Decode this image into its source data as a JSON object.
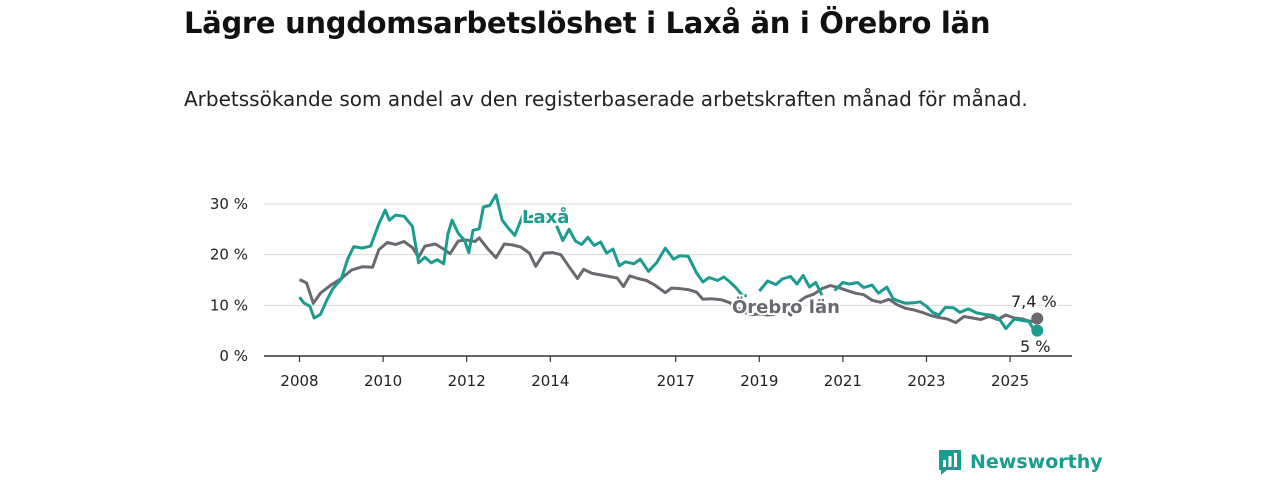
{
  "header": {
    "title": "Lägre ungdomsarbetslöshet i Laxå än i Örebro län",
    "subtitle": "Arbetssökande som andel av den registerbaserade arbetskraften månad för månad."
  },
  "brand": {
    "name": "Newsworthy",
    "icon": "newsworthy-logo-icon",
    "color": "#1a9c8f"
  },
  "chart_data": {
    "type": "line",
    "title": "Lägre ungdomsarbetslöshet i Laxå än i Örebro län",
    "subtitle": "Arbetssökande som andel av den registerbaserade arbetskraften månad för månad.",
    "xlabel": "",
    "ylabel": "",
    "ylim": [
      0,
      35
    ],
    "xlim": [
      2007.5,
      2026.3
    ],
    "grid": "horizontal",
    "y_ticks": [
      0,
      10,
      20,
      30
    ],
    "y_tick_labels": [
      "0 %",
      "10 %",
      "20 %",
      "30 %"
    ],
    "x_ticks": [
      2008,
      2010,
      2012,
      2014,
      2017,
      2019,
      2021,
      2023,
      2025
    ],
    "x_tick_labels": [
      "2008",
      "2010",
      "2012",
      "2014",
      "2017",
      "2019",
      "2021",
      "2023",
      "2025"
    ],
    "series": [
      {
        "name": "Örebro län",
        "color": "#6b6970",
        "end_label": "7,4 %",
        "points": [
          [
            2008.0,
            15.1
          ],
          [
            2008.17,
            14.4
          ],
          [
            2008.33,
            10.4
          ],
          [
            2008.5,
            12.4
          ],
          [
            2008.75,
            14.0
          ],
          [
            2009.0,
            15.3
          ],
          [
            2009.25,
            17.0
          ],
          [
            2009.5,
            17.6
          ],
          [
            2009.75,
            17.5
          ],
          [
            2009.9,
            21.0
          ],
          [
            2010.1,
            22.4
          ],
          [
            2010.3,
            22.0
          ],
          [
            2010.5,
            22.6
          ],
          [
            2010.7,
            21.4
          ],
          [
            2010.85,
            19.5
          ],
          [
            2011.0,
            21.7
          ],
          [
            2011.25,
            22.1
          ],
          [
            2011.45,
            21.1
          ],
          [
            2011.6,
            20.2
          ],
          [
            2011.8,
            22.7
          ],
          [
            2012.0,
            22.9
          ],
          [
            2012.2,
            22.6
          ],
          [
            2012.3,
            23.3
          ],
          [
            2012.5,
            21.2
          ],
          [
            2012.7,
            19.4
          ],
          [
            2012.9,
            22.1
          ],
          [
            2013.1,
            21.9
          ],
          [
            2013.3,
            21.5
          ],
          [
            2013.5,
            20.3
          ],
          [
            2013.65,
            17.7
          ],
          [
            2013.85,
            20.3
          ],
          [
            2014.05,
            20.4
          ],
          [
            2014.25,
            20.0
          ],
          [
            2014.45,
            17.6
          ],
          [
            2014.65,
            15.3
          ],
          [
            2014.8,
            17.1
          ],
          [
            2015.0,
            16.3
          ],
          [
            2015.2,
            16.0
          ],
          [
            2015.4,
            15.7
          ],
          [
            2015.6,
            15.4
          ],
          [
            2015.75,
            13.7
          ],
          [
            2015.9,
            15.8
          ],
          [
            2016.1,
            15.3
          ],
          [
            2016.3,
            14.9
          ],
          [
            2016.5,
            14.0
          ],
          [
            2016.75,
            12.5
          ],
          [
            2016.9,
            13.4
          ],
          [
            2017.1,
            13.3
          ],
          [
            2017.3,
            13.1
          ],
          [
            2017.5,
            12.6
          ],
          [
            2017.65,
            11.2
          ],
          [
            2017.85,
            11.3
          ],
          [
            2018.1,
            11.1
          ],
          [
            2018.3,
            10.5
          ],
          [
            2018.5,
            9.4
          ],
          [
            2018.7,
            8.4
          ],
          [
            2018.85,
            8.2
          ],
          [
            2019.0,
            8.3
          ],
          [
            2019.2,
            8.1
          ],
          [
            2019.4,
            8.3
          ],
          [
            2019.6,
            9.1
          ],
          [
            2019.75,
            8.1
          ],
          [
            2019.9,
            10.4
          ],
          [
            2020.1,
            11.6
          ],
          [
            2020.3,
            12.2
          ],
          [
            2020.5,
            13.3
          ],
          [
            2020.7,
            13.9
          ],
          [
            2020.9,
            13.5
          ],
          [
            2021.1,
            12.9
          ],
          [
            2021.3,
            12.4
          ],
          [
            2021.5,
            12.1
          ],
          [
            2021.7,
            11.0
          ],
          [
            2021.9,
            10.6
          ],
          [
            2022.1,
            11.2
          ],
          [
            2022.3,
            10.1
          ],
          [
            2022.5,
            9.4
          ],
          [
            2022.7,
            9.1
          ],
          [
            2022.9,
            8.6
          ],
          [
            2023.1,
            8.0
          ],
          [
            2023.3,
            7.6
          ],
          [
            2023.5,
            7.3
          ],
          [
            2023.7,
            6.6
          ],
          [
            2023.9,
            7.8
          ],
          [
            2024.1,
            7.5
          ],
          [
            2024.3,
            7.2
          ],
          [
            2024.5,
            7.8
          ],
          [
            2024.7,
            7.2
          ],
          [
            2024.9,
            8.1
          ],
          [
            2025.1,
            7.5
          ],
          [
            2025.3,
            7.3
          ],
          [
            2025.45,
            6.9
          ],
          [
            2025.55,
            6.8
          ],
          [
            2025.65,
            7.4
          ]
        ]
      },
      {
        "name": "Laxå",
        "color": "#1a9c8f",
        "end_label": "5 %",
        "segments": [
          [
            [
              2008.0,
              11.6
            ],
            [
              2008.1,
              10.5
            ],
            [
              2008.25,
              9.8
            ],
            [
              2008.35,
              7.5
            ],
            [
              2008.5,
              8.2
            ],
            [
              2008.65,
              11.0
            ],
            [
              2008.8,
              13.3
            ],
            [
              2009.0,
              15.2
            ],
            [
              2009.15,
              19.1
            ],
            [
              2009.3,
              21.6
            ],
            [
              2009.5,
              21.3
            ],
            [
              2009.7,
              21.7
            ],
            [
              2009.9,
              26.1
            ],
            [
              2010.05,
              28.8
            ],
            [
              2010.15,
              26.8
            ],
            [
              2010.3,
              27.8
            ],
            [
              2010.5,
              27.6
            ],
            [
              2010.7,
              25.6
            ],
            [
              2010.85,
              18.4
            ],
            [
              2011.0,
              19.5
            ],
            [
              2011.15,
              18.4
            ],
            [
              2011.3,
              19.0
            ],
            [
              2011.45,
              18.2
            ],
            [
              2011.55,
              24.1
            ],
            [
              2011.65,
              26.8
            ],
            [
              2011.8,
              24.2
            ],
            [
              2011.95,
              22.8
            ],
            [
              2012.05,
              20.4
            ],
            [
              2012.15,
              24.8
            ],
            [
              2012.3,
              25.1
            ],
            [
              2012.4,
              29.4
            ],
            [
              2012.55,
              29.7
            ],
            [
              2012.7,
              31.8
            ],
            [
              2012.85,
              26.8
            ],
            [
              2013.0,
              25.2
            ],
            [
              2013.15,
              23.8
            ],
            [
              2013.35,
              27.9
            ],
            [
              2013.5,
              27.4
            ],
            [
              2013.65,
              27.8
            ],
            [
              2013.8,
              26.1
            ],
            [
              2013.9,
              27.3
            ],
            [
              2014.0,
              27.7
            ]
          ],
          [
            [
              2014.15,
              25.7
            ],
            [
              2014.3,
              22.8
            ],
            [
              2014.45,
              25.0
            ],
            [
              2014.6,
              22.7
            ],
            [
              2014.75,
              22.0
            ],
            [
              2014.9,
              23.4
            ],
            [
              2015.05,
              21.8
            ],
            [
              2015.2,
              22.5
            ],
            [
              2015.35,
              20.3
            ],
            [
              2015.5,
              21.1
            ],
            [
              2015.65,
              17.8
            ],
            [
              2015.8,
              18.6
            ],
            [
              2016.0,
              18.2
            ],
            [
              2016.15,
              19.1
            ],
            [
              2016.35,
              16.7
            ],
            [
              2016.55,
              18.5
            ],
            [
              2016.75,
              21.3
            ],
            [
              2016.95,
              19.1
            ],
            [
              2017.1,
              19.8
            ],
            [
              2017.3,
              19.7
            ],
            [
              2017.5,
              16.4
            ],
            [
              2017.65,
              14.6
            ],
            [
              2017.8,
              15.5
            ],
            [
              2018.0,
              14.9
            ],
            [
              2018.15,
              15.6
            ],
            [
              2018.3,
              14.6
            ],
            [
              2018.45,
              13.4
            ],
            [
              2018.6,
              11.9
            ],
            [
              2018.7,
              11.9
            ]
          ],
          [
            [
              2019.0,
              12.8
            ],
            [
              2019.2,
              14.8
            ],
            [
              2019.4,
              14.1
            ],
            [
              2019.55,
              15.2
            ],
            [
              2019.75,
              15.7
            ],
            [
              2019.9,
              14.2
            ],
            [
              2020.05,
              15.9
            ],
            [
              2020.2,
              13.6
            ],
            [
              2020.35,
              14.5
            ],
            [
              2020.5,
              12.0
            ]
          ],
          [
            [
              2020.8,
              12.9
            ],
            [
              2021.0,
              14.5
            ],
            [
              2021.15,
              14.2
            ],
            [
              2021.35,
              14.5
            ],
            [
              2021.5,
              13.5
            ],
            [
              2021.7,
              14.0
            ],
            [
              2021.85,
              12.4
            ],
            [
              2022.05,
              13.6
            ],
            [
              2022.2,
              11.3
            ],
            [
              2022.35,
              10.8
            ],
            [
              2022.5,
              10.4
            ],
            [
              2022.7,
              10.5
            ],
            [
              2022.85,
              10.7
            ],
            [
              2023.0,
              9.8
            ],
            [
              2023.15,
              8.6
            ],
            [
              2023.3,
              8.1
            ],
            [
              2023.45,
              9.6
            ],
            [
              2023.65,
              9.5
            ],
            [
              2023.8,
              8.6
            ],
            [
              2024.0,
              9.3
            ],
            [
              2024.2,
              8.5
            ],
            [
              2024.4,
              8.2
            ],
            [
              2024.6,
              8.0
            ],
            [
              2024.75,
              7.2
            ],
            [
              2024.9,
              5.4
            ],
            [
              2025.1,
              7.3
            ],
            [
              2025.3,
              7.0
            ],
            [
              2025.45,
              6.8
            ],
            [
              2025.55,
              5.4
            ],
            [
              2025.65,
              5.0
            ]
          ]
        ]
      }
    ]
  }
}
